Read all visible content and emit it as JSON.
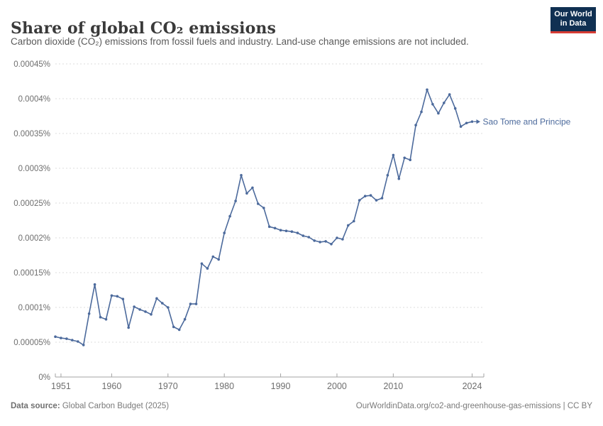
{
  "header": {
    "title": "Share of global CO₂ emissions",
    "subtitle": "Carbon dioxide (CO₂) emissions from fossil fuels and industry. Land-use change emissions are not included.",
    "logo_line1": "Our World",
    "logo_line2": "in Data"
  },
  "chart_data": {
    "type": "line",
    "title": "Share of global CO₂ emissions",
    "xlabel": "",
    "ylabel": "",
    "xlim": [
      1950,
      2024
    ],
    "ylim": [
      0,
      0.00045
    ],
    "grid": "horizontal-dashed",
    "legend_position": "end-of-line-label",
    "x_tick_values": [
      1951,
      1960,
      1970,
      1980,
      1990,
      2000,
      2010,
      2024
    ],
    "x_tick_labels": [
      "1951",
      "1960",
      "1970",
      "1980",
      "1990",
      "2000",
      "2010",
      "2024"
    ],
    "y_tick_values": [
      0,
      5e-05,
      0.0001,
      0.00015,
      0.0002,
      0.00025,
      0.0003,
      0.00035,
      0.0004,
      0.00045
    ],
    "y_tick_labels": [
      "0%",
      "0.00005%",
      "0.0001%",
      "0.00015%",
      "0.0002%",
      "0.00025%",
      "0.0003%",
      "0.00035%",
      "0.0004%",
      "0.00045%"
    ],
    "series": [
      {
        "name": "Sao Tome and Principe",
        "color": "#4C6A9C",
        "x": [
          1950,
          1951,
          1952,
          1953,
          1954,
          1955,
          1956,
          1957,
          1958,
          1959,
          1960,
          1961,
          1962,
          1963,
          1964,
          1965,
          1966,
          1967,
          1968,
          1969,
          1970,
          1971,
          1972,
          1973,
          1974,
          1975,
          1976,
          1977,
          1978,
          1979,
          1980,
          1981,
          1982,
          1983,
          1984,
          1985,
          1986,
          1987,
          1988,
          1989,
          1990,
          1991,
          1992,
          1993,
          1994,
          1995,
          1996,
          1997,
          1998,
          1999,
          2000,
          2001,
          2002,
          2003,
          2004,
          2005,
          2006,
          2007,
          2008,
          2009,
          2010,
          2011,
          2012,
          2013,
          2014,
          2015,
          2016,
          2017,
          2018,
          2019,
          2020,
          2021,
          2022,
          2023,
          2024
        ],
        "values": [
          5.8e-05,
          5.6e-05,
          5.5e-05,
          5.3e-05,
          5.1e-05,
          4.6e-05,
          9.1e-05,
          0.000133,
          8.6e-05,
          8.3e-05,
          0.000117,
          0.000116,
          0.000112,
          7.1e-05,
          0.000101,
          9.7e-05,
          9.4e-05,
          9e-05,
          0.000113,
          0.000106,
          0.0001,
          7.2e-05,
          6.8e-05,
          8.3e-05,
          0.000105,
          0.000105,
          0.000163,
          0.000156,
          0.000173,
          0.000169,
          0.000207,
          0.000231,
          0.000253,
          0.00029,
          0.000264,
          0.000272,
          0.000249,
          0.000243,
          0.000216,
          0.000214,
          0.000211,
          0.00021,
          0.000209,
          0.000207,
          0.000203,
          0.000201,
          0.000196,
          0.000194,
          0.000195,
          0.000191,
          0.0002,
          0.000198,
          0.000218,
          0.000224,
          0.000254,
          0.00026,
          0.000261,
          0.000254,
          0.000257,
          0.00029,
          0.000319,
          0.000285,
          0.000315,
          0.000312,
          0.000362,
          0.000381,
          0.000413,
          0.000392,
          0.000379,
          0.000394,
          0.000406,
          0.000386,
          0.00036,
          0.000365,
          0.000367
        ]
      }
    ],
    "series_label": "Sao Tome and Principe"
  },
  "footer": {
    "source_label": "Data source:",
    "source_text": " Global Carbon Budget (2025)",
    "credit_text": "OurWorldinData.org/co2-and-greenhouse-gas-emissions | CC BY"
  },
  "colors": {
    "line": "#4C6A9C",
    "grid": "#dcdcdc",
    "axis": "#a3a3a3",
    "tick_text": "#6e6e6e",
    "logo_bg": "#103052",
    "logo_red": "#d73c34"
  }
}
